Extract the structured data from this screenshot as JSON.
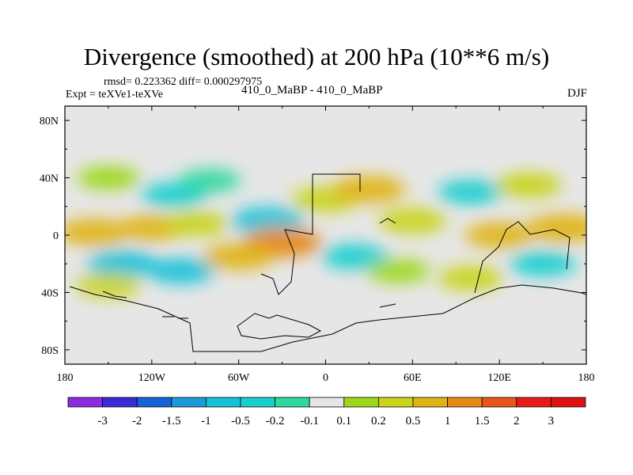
{
  "chart_data": {
    "type": "contour-map",
    "title": "Divergence (smoothed) at 200 hPa (10**6 m/s)",
    "stats_text": "rmsd= 0.223362  diff= 0.000297975",
    "experiment_text": "Expt = teXVe1-teXVe",
    "center_text": "410_0_MaBP - 410_0_MaBP",
    "season": "DJF",
    "x_ticks": [
      "180",
      "120W",
      "60W",
      "0",
      "60E",
      "120E",
      "180"
    ],
    "x_values": [
      -180,
      -120,
      -60,
      0,
      60,
      120,
      180
    ],
    "y_ticks": [
      "80N",
      "40N",
      "0",
      "40S",
      "80S"
    ],
    "y_values": [
      80,
      40,
      0,
      -40,
      -80
    ],
    "xlim": [
      -180,
      180
    ],
    "ylim": [
      -90,
      90
    ],
    "colorbar_labels": [
      "-3",
      "-2",
      "-1.5",
      "-1",
      "-0.5",
      "-0.2",
      "-0.1",
      "0.1",
      "0.2",
      "0.5",
      "1",
      "1.5",
      "2",
      "3"
    ],
    "colorbar_colors": [
      "#8a2be2",
      "#3a2bd8",
      "#1663d8",
      "#1a9ad8",
      "#16c2d8",
      "#18cfd0",
      "#2ed8a0",
      "#e6e6e6",
      "#9cd818",
      "#c8d418",
      "#e0b414",
      "#e68a14",
      "#e8561a",
      "#e81a1a",
      "#e01010"
    ],
    "patches": [
      {
        "lon": -150,
        "lat": 40,
        "value": 0.15
      },
      {
        "lon": -105,
        "lat": 28,
        "value": -0.3
      },
      {
        "lon": -80,
        "lat": 38,
        "value": -0.15
      },
      {
        "lon": -120,
        "lat": 5,
        "value": 0.6
      },
      {
        "lon": -160,
        "lat": 2,
        "value": 0.8
      },
      {
        "lon": -90,
        "lat": 8,
        "value": 0.4
      },
      {
        "lon": -40,
        "lat": 10,
        "value": -0.8
      },
      {
        "lon": -30,
        "lat": -5,
        "value": 1.2
      },
      {
        "lon": -60,
        "lat": -15,
        "value": 0.7
      },
      {
        "lon": -140,
        "lat": -20,
        "value": -0.7
      },
      {
        "lon": -100,
        "lat": -25,
        "value": -0.5
      },
      {
        "lon": -150,
        "lat": -35,
        "value": 0.3
      },
      {
        "lon": 0,
        "lat": 25,
        "value": 0.5
      },
      {
        "lon": 30,
        "lat": 32,
        "value": 0.8
      },
      {
        "lon": 60,
        "lat": 10,
        "value": 0.5
      },
      {
        "lon": 20,
        "lat": -15,
        "value": -0.4
      },
      {
        "lon": 50,
        "lat": -25,
        "value": 0.2
      },
      {
        "lon": 100,
        "lat": 30,
        "value": -0.3
      },
      {
        "lon": 140,
        "lat": 35,
        "value": 0.4
      },
      {
        "lon": 120,
        "lat": 0,
        "value": 0.6
      },
      {
        "lon": 150,
        "lat": -20,
        "value": -0.4
      },
      {
        "lon": 100,
        "lat": -30,
        "value": 0.3
      },
      {
        "lon": 165,
        "lat": 5,
        "value": 1.0
      }
    ]
  }
}
